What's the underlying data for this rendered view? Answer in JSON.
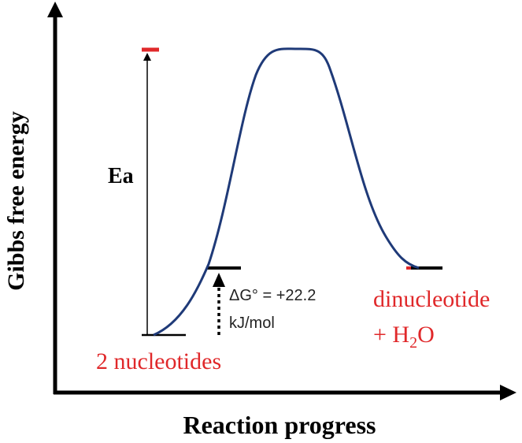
{
  "axes": {
    "y_label": "Gibbs free energy",
    "x_label": "Reaction progress"
  },
  "labels": {
    "activation": "Ea",
    "reactants": "2 nucleotides",
    "delta_g_line1": "ΔG° = +22.2",
    "delta_g_line2": "kJ/mol",
    "product_line1": "dinucleotide",
    "product_line2": [
      "+ H",
      "2",
      "O"
    ]
  }
}
